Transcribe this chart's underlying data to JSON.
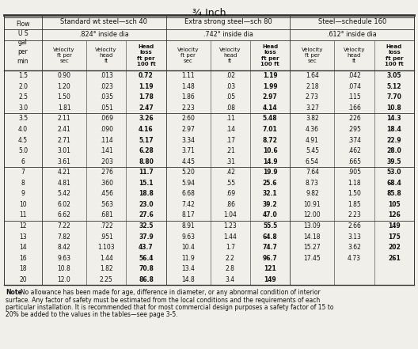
{
  "title": "¾ Inch",
  "main_headers": [
    "Standard wt steel—sch 40",
    "Extra strong steel—sch 80",
    "Steel—schedule 160"
  ],
  "sub_headers": [
    ".824° inside dia",
    ".742° inside dia",
    ".612° inside dia"
  ],
  "col_detail": [
    "Velocity\nft per\nsec",
    "Velocity\nhead\nft",
    "Head\nloss\nft per\n100 ft"
  ],
  "flow_label": "Flow\nU S\ngal\nper\nmin",
  "rows": [
    [
      "1.5",
      "0.90",
      ".013",
      "0.72",
      "1.11",
      ".02",
      "1.19",
      "1.64",
      ".042",
      "3.05"
    ],
    [
      "2.0",
      "1.20",
      ".023",
      "1.19",
      "1.48",
      ".03",
      "1.99",
      "2.18",
      ".074",
      "5.12"
    ],
    [
      "2.5",
      "1.50",
      ".035",
      "1.78",
      "1.86",
      ".05",
      "2.97",
      "2.73",
      ".115",
      "7.70"
    ],
    [
      "3.0",
      "1.81",
      ".051",
      "2.47",
      "2.23",
      ".08",
      "4.14",
      "3.27",
      ".166",
      "10.8"
    ],
    [
      "3.5",
      "2.11",
      ".069",
      "3.26",
      "2.60",
      ".11",
      "5.48",
      "3.82",
      ".226",
      "14.3"
    ],
    [
      "4.0",
      "2.41",
      ".090",
      "4.16",
      "2.97",
      ".14",
      "7.01",
      "4.36",
      ".295",
      "18.4"
    ],
    [
      "4.5",
      "2.71",
      ".114",
      "5.17",
      "3.34",
      ".17",
      "8.72",
      "4.91",
      ".374",
      "22.9"
    ],
    [
      "5.0",
      "3.01",
      ".141",
      "6.28",
      "3.71",
      ".21",
      "10.6",
      "5.45",
      ".462",
      "28.0"
    ],
    [
      "6",
      "3.61",
      ".203",
      "8.80",
      "4.45",
      ".31",
      "14.9",
      "6.54",
      ".665",
      "39.5"
    ],
    [
      "7",
      "4.21",
      ".276",
      "11.7",
      "5.20",
      ".42",
      "19.9",
      "7.64",
      ".905",
      "53.0"
    ],
    [
      "8",
      "4.81",
      ".360",
      "15.1",
      "5.94",
      ".55",
      "25.6",
      "8.73",
      "1.18",
      "68.4"
    ],
    [
      "9",
      "5.42",
      ".456",
      "18.8",
      "6.68",
      ".69",
      "32.1",
      "9.82",
      "1.50",
      "85.8"
    ],
    [
      "10",
      "6.02",
      ".563",
      "23.0",
      "7.42",
      ".86",
      "39.2",
      "10.91",
      "1.85",
      "105"
    ],
    [
      "11",
      "6.62",
      ".681",
      "27.6",
      "8.17",
      "1.04",
      "47.0",
      "12.00",
      "2.23",
      "126"
    ],
    [
      "12",
      "7.22",
      ".722",
      "32.5",
      "8.91",
      "1.23",
      "55.5",
      "13.09",
      "2.66",
      "149"
    ],
    [
      "13",
      "7.82",
      ".951",
      "37.9",
      "9.63",
      "1.44",
      "64.8",
      "14.18",
      "3.13",
      "175"
    ],
    [
      "14",
      "8.42",
      "1.103",
      "43.7",
      "10.4",
      "1.7",
      "74.7",
      "15.27",
      "3.62",
      "202"
    ],
    [
      "16",
      "9.63",
      "1.44",
      "56.4",
      "11.9",
      "2.2",
      "96.7",
      "17.45",
      "4.73",
      "261"
    ],
    [
      "18",
      "10.8",
      "1.82",
      "70.8",
      "13.4",
      "2.8",
      "121",
      "",
      "",
      ""
    ],
    [
      "20",
      "12.0",
      "2.25",
      "86.8",
      "14.8",
      "3.4",
      "149",
      "",
      "",
      ""
    ]
  ],
  "group_sep_after": [
    4,
    9,
    14
  ],
  "note_bold": "Note",
  "note_rest": ": No allowance has been made for age, difference in diameter, or any abnormal condition of interior surface. Any factor of safety must be estimated from the local conditions and the requirements of each particular installation. It is recommended that for most commercial design purposes a safety factor of 15 to 20% be added to the values in the tables—see page 3-5.",
  "bg_color": "#f0efea",
  "line_color": "#333333",
  "text_color": "#111111"
}
